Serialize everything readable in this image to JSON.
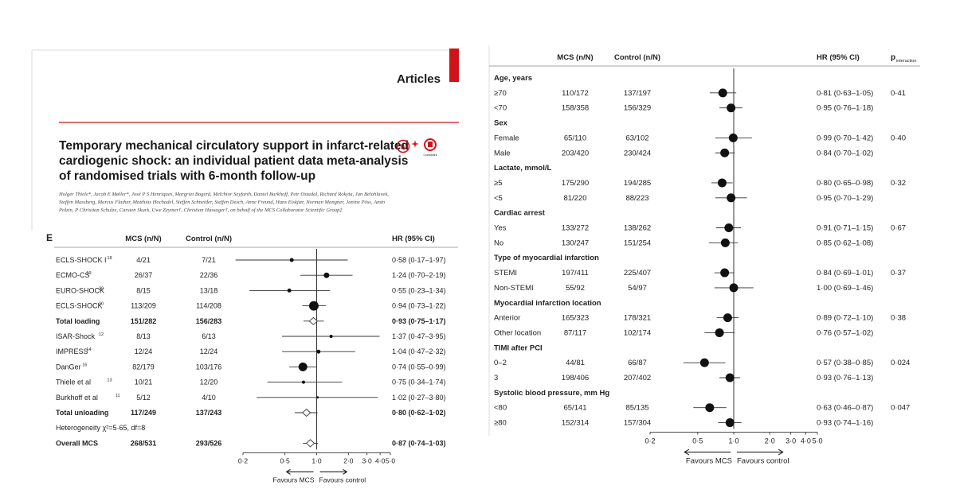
{
  "header": {
    "section": "Articles",
    "title_lines": [
      "Temporary mechanical circulatory support in infarct-related",
      "cardiogenic shock: an individual patient data meta-analysis",
      "of randomised trials with 6-month follow-up"
    ],
    "authors": "Holger Thiele*, Jacob E Møller*, José P S Henriques, Margriet Bogerd, Melchior Seyfarth, Daniel Burkhoff, Petr Ostadal, Richard Rokyta, Jan Belohlavek, Steffen Massberg, Marcus Flather, Matthias Hochadel, Steffen Schneider, Steffen Desch, Anne Freund, Hans Eiskjær, Norman Mangner, Janine Pöss, Amin Polzin, P Christian Schulze, Carsten Skurk, Uwe Zeymer†, Christian Hassager†, on behalf of the MCS Collaborator Scientific Group‡",
    "badge_text": "CrossMark"
  },
  "colors": {
    "accent": "#d0121b",
    "text": "#222222",
    "rule": "#888888"
  },
  "chart_data": [
    {
      "type": "forest",
      "panel_label": "E",
      "columns": [
        "MCS (n/N)",
        "Control (n/N)",
        "HR (95% CI)"
      ],
      "x_scale": "log",
      "xlim": [
        0.2,
        5.0
      ],
      "ticks": [
        {
          "v": 0.2,
          "label": "0·2"
        },
        {
          "v": 0.5,
          "label": "0·5"
        },
        {
          "v": 1.0,
          "label": "1·0"
        },
        {
          "v": 2.0,
          "label": "2·0"
        },
        {
          "v": 3.0,
          "label": "3·0"
        },
        {
          "v": 4.0,
          "label": "4·0"
        },
        {
          "v": 5.0,
          "label": "5·0"
        }
      ],
      "favours_left": "Favours MCS",
      "favours_right": "Favours control",
      "rows": [
        {
          "label": "ECLS-SHOCK I",
          "sup": "18",
          "mcs": "4/21",
          "ctrl": "7/21",
          "hr": 0.58,
          "lo": 0.17,
          "hi": 1.97,
          "hr_text": "0·58 (0·17–1·97)",
          "kind": "study",
          "size": 2.5
        },
        {
          "label": "ECMO-CS",
          "sup": "19",
          "mcs": "26/37",
          "ctrl": "22/36",
          "hr": 1.24,
          "lo": 0.7,
          "hi": 2.19,
          "hr_text": "1·24 (0·70–2·19)",
          "kind": "study",
          "size": 3.5
        },
        {
          "label": "EURO-SHOCK",
          "sup": "20",
          "mcs": "8/15",
          "ctrl": "13/18",
          "hr": 0.55,
          "lo": 0.23,
          "hi": 1.34,
          "hr_text": "0·55 (0·23–1·34)",
          "kind": "study",
          "size": 2.5
        },
        {
          "label": "ECLS-SHOCK",
          "sup": "10",
          "mcs": "113/209",
          "ctrl": "114/208",
          "hr": 0.94,
          "lo": 0.73,
          "hi": 1.22,
          "hr_text": "0·94 (0·73–1·22)",
          "kind": "study",
          "size": 6
        },
        {
          "label": "Total loading",
          "sup": "",
          "mcs": "151/282",
          "ctrl": "156/283",
          "hr": 0.93,
          "lo": 0.75,
          "hi": 1.17,
          "hr_text": "0·93 (0·75–1·17)",
          "kind": "total",
          "size": 0
        },
        {
          "label": "ISAR-Shock",
          "sup": "12",
          "mcs": "8/13",
          "ctrl": "6/13",
          "hr": 1.37,
          "lo": 0.47,
          "hi": 3.95,
          "hr_text": "1·37 (0·47–3·95)",
          "kind": "study",
          "size": 2
        },
        {
          "label": "IMPRESS",
          "sup": "14",
          "mcs": "12/24",
          "ctrl": "12/24",
          "hr": 1.04,
          "lo": 0.47,
          "hi": 2.32,
          "hr_text": "1·04 (0·47–2·32)",
          "kind": "study",
          "size": 2.5
        },
        {
          "label": "DanGer",
          "sup": "16",
          "mcs": "82/179",
          "ctrl": "103/176",
          "hr": 0.74,
          "lo": 0.55,
          "hi": 0.99,
          "hr_text": "0·74 (0·55–0·99)",
          "kind": "study",
          "size": 5.5
        },
        {
          "label": "Thiele et al",
          "sup": "13",
          "mcs": "10/21",
          "ctrl": "12/20",
          "hr": 0.75,
          "lo": 0.34,
          "hi": 1.74,
          "hr_text": "0·75 (0·34–1·74)",
          "kind": "study",
          "size": 2
        },
        {
          "label": "Burkhoff et al",
          "sup": "11",
          "mcs": "5/12",
          "ctrl": "4/10",
          "hr": 1.02,
          "lo": 0.27,
          "hi": 3.8,
          "hr_text": "1·02 (0·27–3·80)",
          "kind": "study",
          "size": 1.5
        },
        {
          "label": "Total unloading",
          "sup": "",
          "mcs": "117/249",
          "ctrl": "137/243",
          "hr": 0.8,
          "lo": 0.62,
          "hi": 1.02,
          "hr_text": "0·80 (0·62–1·02)",
          "kind": "total",
          "size": 0
        },
        {
          "label": "Heterogeneity χ²=5·65, df=8",
          "sup": "",
          "mcs": "",
          "ctrl": "",
          "hr": null,
          "lo": null,
          "hi": null,
          "hr_text": "",
          "kind": "note",
          "size": 0
        },
        {
          "label": "Overall MCS",
          "sup": "",
          "mcs": "268/531",
          "ctrl": "293/526",
          "hr": 0.87,
          "lo": 0.74,
          "hi": 1.03,
          "hr_text": "0·87 (0·74–1·03)",
          "kind": "total",
          "size": 0
        }
      ]
    },
    {
      "type": "forest",
      "panel_label": "",
      "columns": [
        "MCS (n/N)",
        "Control (n/N)",
        "HR (95% CI)",
        "interaction"
      ],
      "p_label_main": "p",
      "x_scale": "log",
      "xlim": [
        0.2,
        5.0
      ],
      "ticks": [
        {
          "v": 0.2,
          "label": "0·2"
        },
        {
          "v": 0.5,
          "label": "0·5"
        },
        {
          "v": 1.0,
          "label": "1·0"
        },
        {
          "v": 2.0,
          "label": "2·0"
        },
        {
          "v": 3.0,
          "label": "3·0"
        },
        {
          "v": 4.0,
          "label": "4·0"
        },
        {
          "v": 5.0,
          "label": "5·0"
        }
      ],
      "favours_left": "Favours MCS",
      "favours_right": "Favours control",
      "rows": [
        {
          "kind": "header",
          "label": "Age, years"
        },
        {
          "kind": "sub",
          "label": "≥70",
          "mcs": "110/172",
          "ctrl": "137/197",
          "hr": 0.81,
          "lo": 0.63,
          "hi": 1.05,
          "hr_text": "0·81 (0·63–1·05)",
          "p": "0·41"
        },
        {
          "kind": "sub",
          "label": "<70",
          "mcs": "158/358",
          "ctrl": "156/329",
          "hr": 0.95,
          "lo": 0.76,
          "hi": 1.18,
          "hr_text": "0·95 (0·76–1·18)",
          "p": ""
        },
        {
          "kind": "header",
          "label": "Sex"
        },
        {
          "kind": "sub",
          "label": "Female",
          "mcs": "65/110",
          "ctrl": "63/102",
          "hr": 0.99,
          "lo": 0.7,
          "hi": 1.42,
          "hr_text": "0·99 (0·70–1·42)",
          "p": "0·40"
        },
        {
          "kind": "sub",
          "label": "Male",
          "mcs": "203/420",
          "ctrl": "230/424",
          "hr": 0.84,
          "lo": 0.7,
          "hi": 1.02,
          "hr_text": "0·84 (0·70–1·02)",
          "p": ""
        },
        {
          "kind": "header",
          "label": "Lactate, mmol/L"
        },
        {
          "kind": "sub",
          "label": "≥5",
          "mcs": "175/290",
          "ctrl": "194/285",
          "hr": 0.8,
          "lo": 0.65,
          "hi": 0.98,
          "hr_text": "0·80 (0·65–0·98)",
          "p": "0·32"
        },
        {
          "kind": "sub",
          "label": "<5",
          "mcs": "81/220",
          "ctrl": "88/223",
          "hr": 0.95,
          "lo": 0.7,
          "hi": 1.29,
          "hr_text": "0·95 (0·70–1·29)",
          "p": ""
        },
        {
          "kind": "header",
          "label": "Cardiac arrest"
        },
        {
          "kind": "sub",
          "label": "Yes",
          "mcs": "133/272",
          "ctrl": "138/262",
          "hr": 0.91,
          "lo": 0.71,
          "hi": 1.15,
          "hr_text": "0·91 (0·71–1·15)",
          "p": "0·67"
        },
        {
          "kind": "sub",
          "label": "No",
          "mcs": "130/247",
          "ctrl": "151/254",
          "hr": 0.85,
          "lo": 0.62,
          "hi": 1.08,
          "hr_text": "0·85 (0·62–1·08)",
          "p": ""
        },
        {
          "kind": "header",
          "label": "Type of myocardial infarction"
        },
        {
          "kind": "sub",
          "label": "STEMI",
          "mcs": "197/411",
          "ctrl": "225/407",
          "hr": 0.84,
          "lo": 0.69,
          "hi": 1.01,
          "hr_text": "0·84 (0·69–1·01)",
          "p": "0·37"
        },
        {
          "kind": "sub",
          "label": "Non-STEMI",
          "mcs": "55/92",
          "ctrl": "54/97",
          "hr": 1.0,
          "lo": 0.69,
          "hi": 1.46,
          "hr_text": "1·00 (0·69–1·46)",
          "p": ""
        },
        {
          "kind": "header",
          "label": "Myocardial infarction location"
        },
        {
          "kind": "sub",
          "label": "Anterior",
          "mcs": "165/323",
          "ctrl": "178/321",
          "hr": 0.89,
          "lo": 0.72,
          "hi": 1.1,
          "hr_text": "0·89 (0·72–1·10)",
          "p": "0·38"
        },
        {
          "kind": "sub",
          "label": "Other location",
          "mcs": "87/117",
          "ctrl": "102/174",
          "hr": 0.76,
          "lo": 0.57,
          "hi": 1.02,
          "hr_text": "0·76 (0·57–1·02)",
          "p": ""
        },
        {
          "kind": "header",
          "label": "TIMI after PCI"
        },
        {
          "kind": "sub",
          "label": "0–2",
          "mcs": "44/81",
          "ctrl": "66/87",
          "hr": 0.57,
          "lo": 0.38,
          "hi": 0.85,
          "hr_text": "0·57 (0·38–0·85)",
          "p": "0·024"
        },
        {
          "kind": "sub",
          "label": "3",
          "mcs": "198/406",
          "ctrl": "207/402",
          "hr": 0.93,
          "lo": 0.76,
          "hi": 1.13,
          "hr_text": "0·93 (0·76–1·13)",
          "p": ""
        },
        {
          "kind": "header",
          "label": "Systolic blood pressure, mm Hg"
        },
        {
          "kind": "sub",
          "label": "<80",
          "mcs": "65/141",
          "ctrl": "85/135",
          "hr": 0.63,
          "lo": 0.46,
          "hi": 0.87,
          "hr_text": "0·63 (0·46–0·87)",
          "p": "0·047"
        },
        {
          "kind": "sub",
          "label": "≥80",
          "mcs": "152/314",
          "ctrl": "157/304",
          "hr": 0.93,
          "lo": 0.74,
          "hi": 1.16,
          "hr_text": "0·93 (0·74–1·16)",
          "p": ""
        }
      ]
    }
  ]
}
